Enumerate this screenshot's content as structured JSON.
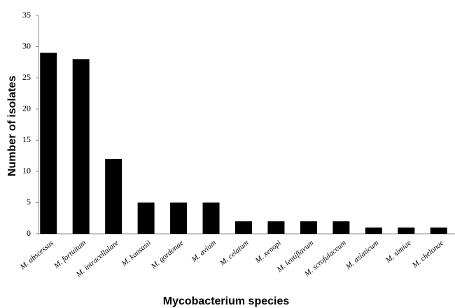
{
  "chart_data": {
    "type": "bar",
    "x_label": "Mycobacterium species",
    "y_label": "Number of isolates",
    "categories": [
      "M. abscessus",
      "M. fortuitum",
      "M. intracellulare",
      "M. kansasii",
      "M. gordonae",
      "M. avium",
      "M. celatum",
      "M. xenopi",
      "M. lentiflavum",
      "M. scrofulaceum",
      "M. asiaticum",
      "M. simiae",
      "M. chelonae"
    ],
    "values": [
      29,
      28,
      12,
      5,
      5,
      5,
      2,
      2,
      2,
      2,
      1,
      1,
      1
    ],
    "color": "#000000",
    "ylim": [
      0,
      35
    ],
    "yticks": [
      0,
      5,
      10,
      15,
      20,
      25,
      30,
      35
    ],
    "grid": false
  }
}
